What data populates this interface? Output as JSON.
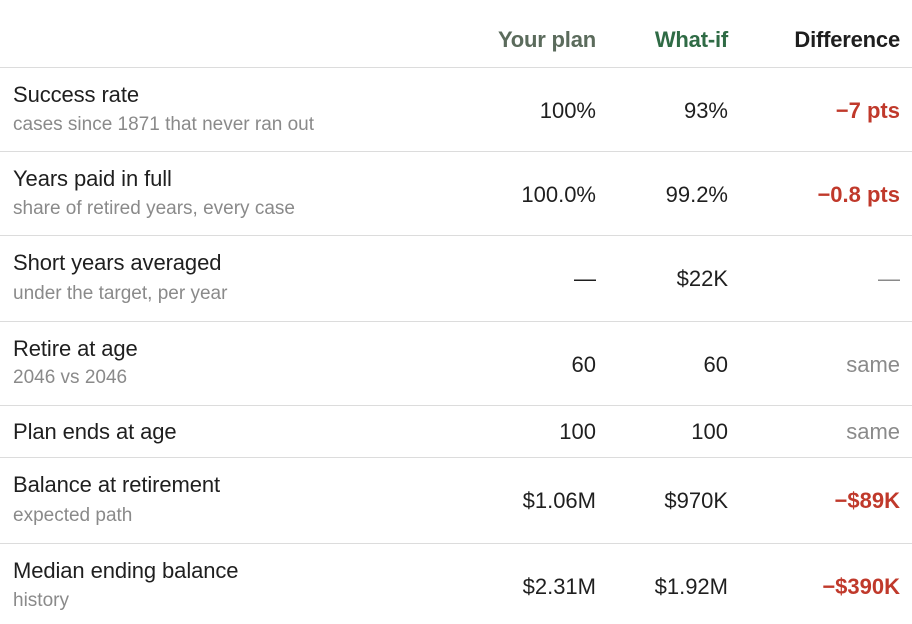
{
  "columns": {
    "plan": "Your plan",
    "whatif": "What-if",
    "difference": "Difference"
  },
  "rows": [
    {
      "label": "Success rate",
      "sub": "cases since 1871 that never ran out",
      "plan": "100%",
      "whatif": "93%",
      "diff": "−7 pts",
      "diff_style": "negative"
    },
    {
      "label": "Years paid in full",
      "sub": "share of retired years, every case",
      "plan": "100.0%",
      "whatif": "99.2%",
      "diff": "−0.8 pts",
      "diff_style": "negative"
    },
    {
      "label": "Short years averaged",
      "sub": "under the target, per year",
      "plan": "—",
      "whatif": "$22K",
      "diff": "—",
      "diff_style": "muted"
    },
    {
      "label": "Retire at age",
      "sub": "2046 vs 2046",
      "plan": "60",
      "whatif": "60",
      "diff": "same",
      "diff_style": "muted"
    },
    {
      "label": "Plan ends at age",
      "sub": "",
      "plan": "100",
      "whatif": "100",
      "diff": "same",
      "diff_style": "muted"
    },
    {
      "label": "Balance at retirement",
      "sub": "expected path",
      "plan": "$1.06M",
      "whatif": "$970K",
      "diff": "−$89K",
      "diff_style": "negative"
    },
    {
      "label": "Median ending balance",
      "sub": "history",
      "plan": "$2.31M",
      "whatif": "$1.92M",
      "diff": "−$390K",
      "diff_style": "negative"
    }
  ],
  "colors": {
    "plan_header": "#5b6b5c",
    "whatif_header": "#2f6b45",
    "negative": "#c0392b",
    "muted": "#8a8a8a"
  }
}
